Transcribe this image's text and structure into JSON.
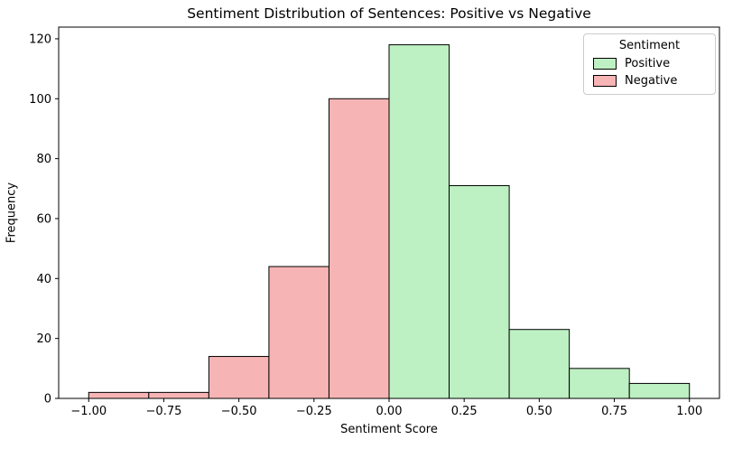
{
  "chart_data": {
    "type": "bar",
    "subtype": "histogram",
    "title": "Sentiment Distribution of Sentences: Positive vs Negative",
    "xlabel": "Sentiment Score",
    "ylabel": "Frequency",
    "xlim": [
      -1.1,
      1.1
    ],
    "ylim": [
      0,
      123.9
    ],
    "grid": false,
    "background": "#ffffff",
    "axis_color": "#000000",
    "xticks": {
      "values": [
        -1.0,
        -0.75,
        -0.5,
        -0.25,
        0.0,
        0.25,
        0.5,
        0.75,
        1.0
      ],
      "labels": [
        "−1.00",
        "−0.75",
        "−0.50",
        "−0.25",
        "0.00",
        "0.25",
        "0.50",
        "0.75",
        "1.00"
      ]
    },
    "yticks": {
      "values": [
        0,
        20,
        40,
        60,
        80,
        100,
        120
      ],
      "labels": [
        "0",
        "20",
        "40",
        "60",
        "80",
        "100",
        "120"
      ]
    },
    "bin_width": 0.2,
    "series": [
      {
        "name": "Negative",
        "color": "#f7b4b4",
        "edgecolor": "#000000",
        "bins": [
          {
            "x0": -1.0,
            "x1": -0.8,
            "count": 2
          },
          {
            "x0": -0.8,
            "x1": -0.6,
            "count": 2
          },
          {
            "x0": -0.6,
            "x1": -0.4,
            "count": 14
          },
          {
            "x0": -0.4,
            "x1": -0.2,
            "count": 44
          },
          {
            "x0": -0.2,
            "x1": 0.0,
            "count": 100
          }
        ]
      },
      {
        "name": "Positive",
        "color": "#bdf0c2",
        "edgecolor": "#000000",
        "bins": [
          {
            "x0": 0.0,
            "x1": 0.2,
            "count": 118
          },
          {
            "x0": 0.2,
            "x1": 0.4,
            "count": 71
          },
          {
            "x0": 0.4,
            "x1": 0.6,
            "count": 23
          },
          {
            "x0": 0.6,
            "x1": 0.8,
            "count": 10
          },
          {
            "x0": 0.8,
            "x1": 1.0,
            "count": 5
          }
        ]
      }
    ],
    "legend": {
      "title": "Sentiment",
      "position": "upper right",
      "entries": [
        {
          "label": "Positive",
          "color": "#bdf0c2"
        },
        {
          "label": "Negative",
          "color": "#f7b4b4"
        }
      ]
    }
  }
}
